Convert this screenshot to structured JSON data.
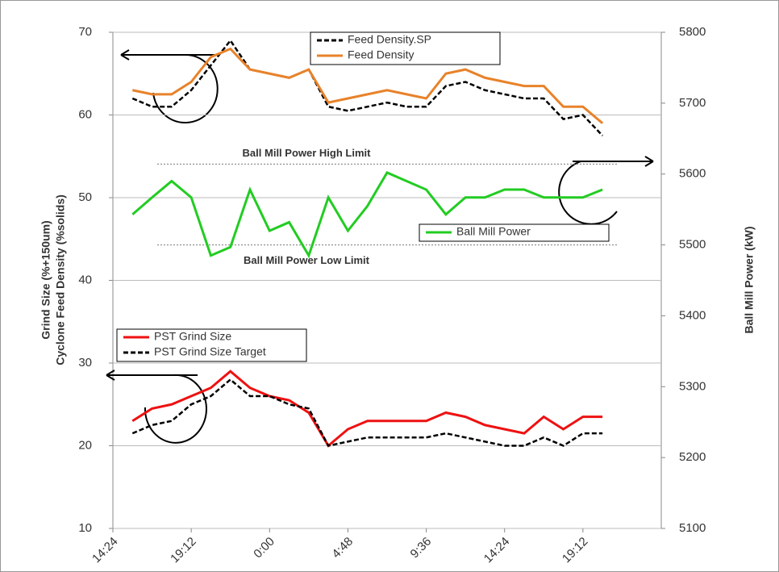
{
  "chart_data": {
    "type": "line",
    "ylabel": [
      "Grind Size (%+150um)",
      "Cyclone Feed Density (%solids)"
    ],
    "y2label": "Ball Mill Power (kW)",
    "x": [
      0.65,
      0.7,
      0.75,
      0.8,
      0.85,
      0.9,
      0.95,
      1.0,
      1.05,
      1.1,
      1.15,
      1.2,
      1.25,
      1.3,
      1.35,
      1.4,
      1.45,
      1.5,
      1.55,
      1.6,
      1.65,
      1.7,
      1.75,
      1.8,
      1.85
    ],
    "xlim": [
      0.6,
      2.0
    ],
    "xticks": [
      {
        "value": 0.6,
        "label": "14:24"
      },
      {
        "value": 0.8,
        "label": "19:12"
      },
      {
        "value": 1.0,
        "label": "0:00"
      },
      {
        "value": 1.2,
        "label": "4:48"
      },
      {
        "value": 1.4,
        "label": "9:36"
      },
      {
        "value": 1.6,
        "label": "14:24"
      },
      {
        "value": 1.8,
        "label": "19:12"
      }
    ],
    "ylim": [
      10,
      70
    ],
    "yticks": [
      10,
      20,
      30,
      40,
      50,
      60,
      70
    ],
    "y2lim": [
      5100,
      5800
    ],
    "y2ticks": [
      5100,
      5200,
      5300,
      5400,
      5500,
      5600,
      5700,
      5800
    ],
    "grid": true,
    "series": [
      {
        "name": "Feed Density.SP",
        "color": "#000000",
        "dash": true,
        "values": [
          62,
          61,
          61,
          63,
          66,
          69,
          65.5,
          65,
          64.5,
          65.5,
          61,
          60.5,
          61,
          61.5,
          61,
          61,
          63.5,
          64,
          63,
          62.5,
          62,
          62,
          59.5,
          60,
          57.5
        ]
      },
      {
        "name": "Feed Density",
        "color": "#e8822a",
        "dash": false,
        "values": [
          63,
          62.5,
          62.5,
          64,
          67,
          68,
          65.5,
          65,
          64.5,
          65.5,
          61.5,
          62,
          62.5,
          63,
          62.5,
          62,
          65,
          65.5,
          64.5,
          64,
          63.5,
          63.5,
          61,
          61,
          59
        ]
      },
      {
        "name": "Ball Mill Power",
        "color": "#22cc22",
        "dash": false,
        "axis": "y2",
        "values": [
          5543,
          5567,
          5590,
          5567,
          5485,
          5497,
          5578,
          5520,
          5532,
          5485,
          5567,
          5520,
          5555,
          5602,
          5590,
          5578,
          5543,
          5567,
          5567,
          5578,
          5578,
          5567,
          5567,
          5567,
          5578
        ]
      },
      {
        "name": "PST Grind Size",
        "color": "#ee1111",
        "dash": false,
        "values": [
          23,
          24.5,
          25,
          26,
          27,
          29,
          27,
          26,
          25.5,
          24,
          20,
          22,
          23,
          23,
          23,
          23,
          24,
          23.5,
          22.5,
          22,
          21.5,
          23.5,
          22,
          23.5,
          23.5
        ]
      },
      {
        "name": "PST Grind Size Target",
        "color": "#000000",
        "dash": true,
        "values": [
          21.5,
          22.5,
          23,
          25,
          26,
          28,
          26,
          26,
          25,
          24.5,
          20,
          20.5,
          21,
          21,
          21,
          21,
          21.5,
          21,
          20.5,
          20,
          20,
          21,
          20,
          21.5,
          21.5
        ]
      }
    ],
    "limits": [
      {
        "text": "Ball Mill Power High Limit",
        "value": 5614,
        "axis": "y2"
      },
      {
        "text": "Ball Mill Power Low Limit",
        "value": 5500,
        "axis": "y2"
      }
    ]
  }
}
